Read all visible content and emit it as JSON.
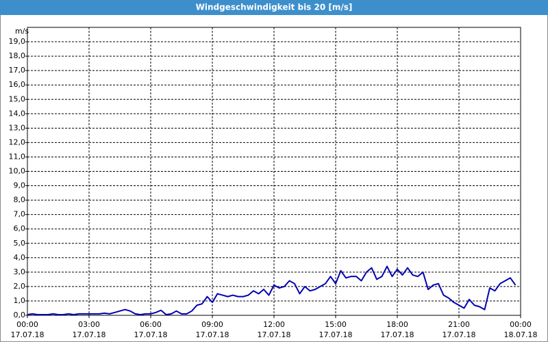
{
  "chart_data": {
    "type": "line",
    "title": "Windgeschwindigkeit bis 20 [m/s]",
    "y_unit": "m/s",
    "x": [
      0,
      0.25,
      0.5,
      0.75,
      1,
      1.25,
      1.5,
      1.75,
      2,
      2.25,
      2.5,
      2.75,
      3,
      3.25,
      3.5,
      3.75,
      4,
      4.25,
      4.5,
      4.75,
      5,
      5.25,
      5.5,
      5.75,
      6,
      6.25,
      6.5,
      6.75,
      7,
      7.25,
      7.5,
      7.75,
      8,
      8.25,
      8.5,
      8.75,
      9,
      9.25,
      9.5,
      9.75,
      10,
      10.25,
      10.5,
      10.75,
      11,
      11.25,
      11.5,
      11.75,
      12,
      12.25,
      12.5,
      12.75,
      13,
      13.25,
      13.5,
      13.75,
      14,
      14.25,
      14.5,
      14.75,
      15,
      15.25,
      15.5,
      15.75,
      16,
      16.25,
      16.5,
      16.75,
      17,
      17.25,
      17.5,
      17.75,
      18,
      18.25,
      18.5,
      18.75,
      19,
      19.25,
      19.5,
      19.75,
      20,
      20.25,
      20.5,
      20.75,
      21,
      21.25,
      21.5,
      21.75,
      22,
      22.25,
      22.5,
      22.75,
      23,
      23.25,
      23.5,
      23.75
    ],
    "series": [
      {
        "name": "Windgeschwindigkeit",
        "color": "#0000b4",
        "values": [
          0.05,
          0.1,
          0.05,
          0.05,
          0.05,
          0.1,
          0.05,
          0.05,
          0.1,
          0.05,
          0.1,
          0.1,
          0.1,
          0.1,
          0.1,
          0.15,
          0.1,
          0.2,
          0.3,
          0.4,
          0.3,
          0.1,
          0.05,
          0.1,
          0.1,
          0.2,
          0.35,
          0.05,
          0.1,
          0.3,
          0.1,
          0.1,
          0.3,
          0.7,
          0.8,
          1.3,
          0.9,
          1.5,
          1.4,
          1.3,
          1.4,
          1.3,
          1.3,
          1.4,
          1.7,
          1.5,
          1.8,
          1.4,
          2.1,
          1.9,
          2.0,
          2.4,
          2.2,
          1.5,
          2.0,
          1.7,
          1.8,
          2.0,
          2.2,
          2.7,
          2.2,
          3.1,
          2.6,
          2.7,
          2.7,
          2.4,
          3.0,
          3.3,
          2.5,
          2.7,
          3.4,
          2.7,
          3.2,
          2.8,
          3.3,
          2.8,
          2.7,
          3.0,
          1.8,
          2.1,
          2.2,
          1.4,
          1.2,
          0.9,
          0.7,
          0.5,
          1.1,
          0.7,
          0.6,
          0.4,
          1.9,
          1.7,
          2.2,
          2.4,
          2.6,
          2.1
        ]
      }
    ],
    "xlim": [
      0,
      24
    ],
    "xticks": [
      {
        "value": 0,
        "label": "00:00"
      },
      {
        "value": 3,
        "label": "03:00"
      },
      {
        "value": 6,
        "label": "06:00"
      },
      {
        "value": 9,
        "label": "09:00"
      },
      {
        "value": 12,
        "label": "12:00"
      },
      {
        "value": 15,
        "label": "15:00"
      },
      {
        "value": 18,
        "label": "18:00"
      },
      {
        "value": 21,
        "label": "21:00"
      },
      {
        "value": 24,
        "label": "00:00"
      }
    ],
    "xtick_dates": [
      "17.07.18",
      "17.07.18",
      "17.07.18",
      "17.07.18",
      "17.07.18",
      "17.07.18",
      "17.07.18",
      "17.07.18",
      "18.07.18"
    ],
    "ylim": [
      0,
      20
    ],
    "yticks": [
      {
        "value": 0,
        "label": "0,0"
      },
      {
        "value": 1,
        "label": "1,0"
      },
      {
        "value": 2,
        "label": "2,0"
      },
      {
        "value": 3,
        "label": "3,0"
      },
      {
        "value": 4,
        "label": "4,0"
      },
      {
        "value": 5,
        "label": "5,0"
      },
      {
        "value": 6,
        "label": "6,0"
      },
      {
        "value": 7,
        "label": "7,0"
      },
      {
        "value": 8,
        "label": "8,0"
      },
      {
        "value": 9,
        "label": "9,0"
      },
      {
        "value": 10,
        "label": "10,0"
      },
      {
        "value": 11,
        "label": "11,0"
      },
      {
        "value": 12,
        "label": "12,0"
      },
      {
        "value": 13,
        "label": "13,0"
      },
      {
        "value": 14,
        "label": "14,0"
      },
      {
        "value": 15,
        "label": "15,0"
      },
      {
        "value": 16,
        "label": "16,0"
      },
      {
        "value": 17,
        "label": "17,0"
      },
      {
        "value": 18,
        "label": "18,0"
      },
      {
        "value": 19,
        "label": "19,0"
      }
    ],
    "grid": true
  }
}
